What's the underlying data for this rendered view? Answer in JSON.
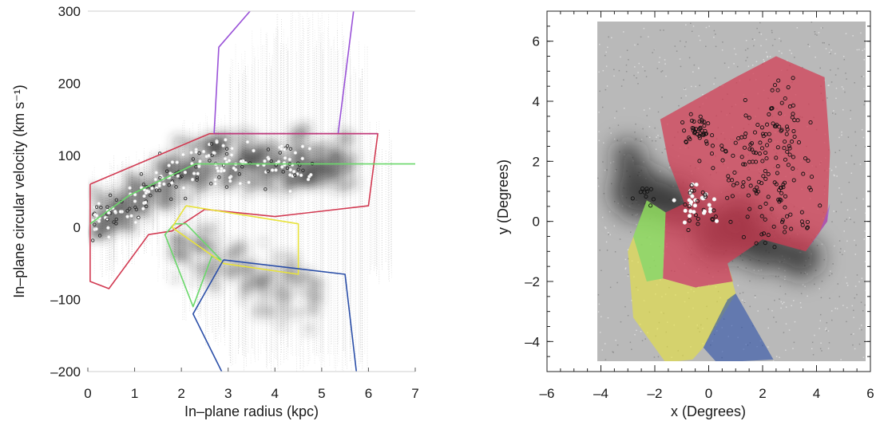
{
  "colors": {
    "red": "#d23a52",
    "purple": "#9a52d8",
    "magenta": "#c0387a",
    "green": "#6ad86a",
    "yellow": "#e8e23a",
    "blue": "#2a4ea8",
    "cloud": "#3a3a3a"
  },
  "chart_data": [
    {
      "type": "scatter",
      "xlabel": "In–plane radius (kpc)",
      "ylabel": "In–plane circular velocity (km s⁻¹)",
      "xlim": [
        0,
        7
      ],
      "ylim": [
        -200,
        300
      ],
      "xticks": [
        "0",
        "1",
        "2",
        "3",
        "4",
        "5",
        "6",
        "7"
      ],
      "yticks": [
        "–200",
        "–100",
        "0",
        "100",
        "200",
        "300"
      ],
      "grid": false,
      "series": [
        {
          "color": "red",
          "values": [
            [
              0.05,
              60
            ],
            [
              2.6,
              130
            ],
            [
              6.2,
              130
            ],
            [
              6.0,
              30
            ],
            [
              4.0,
              15
            ],
            [
              2.5,
              25
            ],
            [
              1.8,
              -5
            ],
            [
              1.3,
              -10
            ],
            [
              0.45,
              -85
            ],
            [
              0.05,
              -75
            ],
            [
              0.05,
              60
            ]
          ]
        },
        {
          "color": "purple",
          "values": [
            [
              2.7,
              130
            ],
            [
              2.8,
              250
            ],
            [
              3.6,
              310
            ],
            [
              5.7,
              310
            ],
            [
              5.35,
              130
            ],
            [
              2.7,
              130
            ]
          ]
        },
        {
          "color": "magenta",
          "values": [
            [
              2.7,
              130
            ],
            [
              6.2,
              130
            ]
          ]
        },
        {
          "color": "green",
          "values": [
            [
              0.05,
              5
            ],
            [
              0.9,
              45
            ],
            [
              2.3,
              88
            ],
            [
              7.0,
              88
            ]
          ]
        },
        {
          "color": "green",
          "values": [
            [
              1.85,
              5
            ],
            [
              1.65,
              -10
            ],
            [
              2.25,
              -110
            ],
            [
              2.65,
              -40
            ],
            [
              2.85,
              -45
            ],
            [
              2.1,
              5
            ],
            [
              1.85,
              5
            ]
          ]
        },
        {
          "color": "yellow",
          "values": [
            [
              2.1,
              30
            ],
            [
              4.5,
              5
            ],
            [
              4.5,
              -65
            ],
            [
              2.9,
              -50
            ],
            [
              1.8,
              0
            ],
            [
              2.1,
              30
            ]
          ]
        },
        {
          "color": "blue",
          "values": [
            [
              2.9,
              -45
            ],
            [
              5.5,
              -65
            ],
            [
              5.75,
              -205
            ],
            [
              5.4,
              -205
            ],
            [
              2.9,
              -205
            ],
            [
              2.25,
              -120
            ],
            [
              2.9,
              -45
            ]
          ]
        }
      ]
    },
    {
      "type": "heatmap",
      "xlabel": "x (Degrees)",
      "ylabel": "y (Degrees)",
      "xlim": [
        -6,
        6
      ],
      "ylim": [
        -5,
        7
      ],
      "xticks": [
        "–6",
        "–4",
        "–2",
        "0",
        "2",
        "4",
        "6"
      ],
      "yticks": [
        "–4",
        "–2",
        "0",
        "2",
        "4",
        "6"
      ],
      "grid": false,
      "regions": [
        {
          "color": "red",
          "outline": [
            [
              -1.8,
              3.4
            ],
            [
              1.0,
              4.8
            ],
            [
              2.5,
              5.5
            ],
            [
              4.3,
              4.8
            ],
            [
              4.5,
              2.3
            ],
            [
              4.4,
              0.0
            ],
            [
              3.6,
              -1.0
            ],
            [
              2.0,
              -0.6
            ],
            [
              0.7,
              -1.4
            ],
            [
              0.9,
              -2.0
            ],
            [
              -0.5,
              -2.2
            ],
            [
              -1.7,
              -1.9
            ],
            [
              -1.6,
              0.3
            ],
            [
              -0.9,
              0.6
            ],
            [
              -1.5,
              2.0
            ],
            [
              -1.8,
              3.4
            ]
          ]
        },
        {
          "color": "yellow",
          "outline": [
            [
              -2.3,
              0.7
            ],
            [
              -1.6,
              0.3
            ],
            [
              -1.7,
              -1.9
            ],
            [
              -0.5,
              -2.2
            ],
            [
              0.9,
              -2.0
            ],
            [
              0.7,
              -1.4
            ],
            [
              1.0,
              -2.4
            ],
            [
              -0.2,
              -4.2
            ],
            [
              -0.6,
              -4.6
            ],
            [
              -1.6,
              -4.7
            ],
            [
              -2.8,
              -3.2
            ],
            [
              -3.0,
              -1.0
            ],
            [
              -2.3,
              0.7
            ]
          ]
        },
        {
          "color": "green",
          "outline": [
            [
              -2.3,
              0.7
            ],
            [
              -1.6,
              0.3
            ],
            [
              -1.7,
              -1.9
            ],
            [
              -2.3,
              -2.0
            ],
            [
              -2.8,
              -0.5
            ],
            [
              -2.3,
              0.7
            ]
          ]
        },
        {
          "color": "blue",
          "outline": [
            [
              1.0,
              -2.4
            ],
            [
              0.7,
              -2.6
            ],
            [
              -0.2,
              -4.2
            ],
            [
              0.3,
              -4.7
            ],
            [
              2.4,
              -4.6
            ],
            [
              1.0,
              -2.4
            ]
          ]
        },
        {
          "color": "purple",
          "outline": [
            [
              3.6,
              -1.0
            ],
            [
              4.4,
              0.0
            ],
            [
              4.5,
              0.6
            ],
            [
              4.1,
              -0.4
            ],
            [
              3.6,
              -1.0
            ]
          ]
        }
      ]
    }
  ]
}
